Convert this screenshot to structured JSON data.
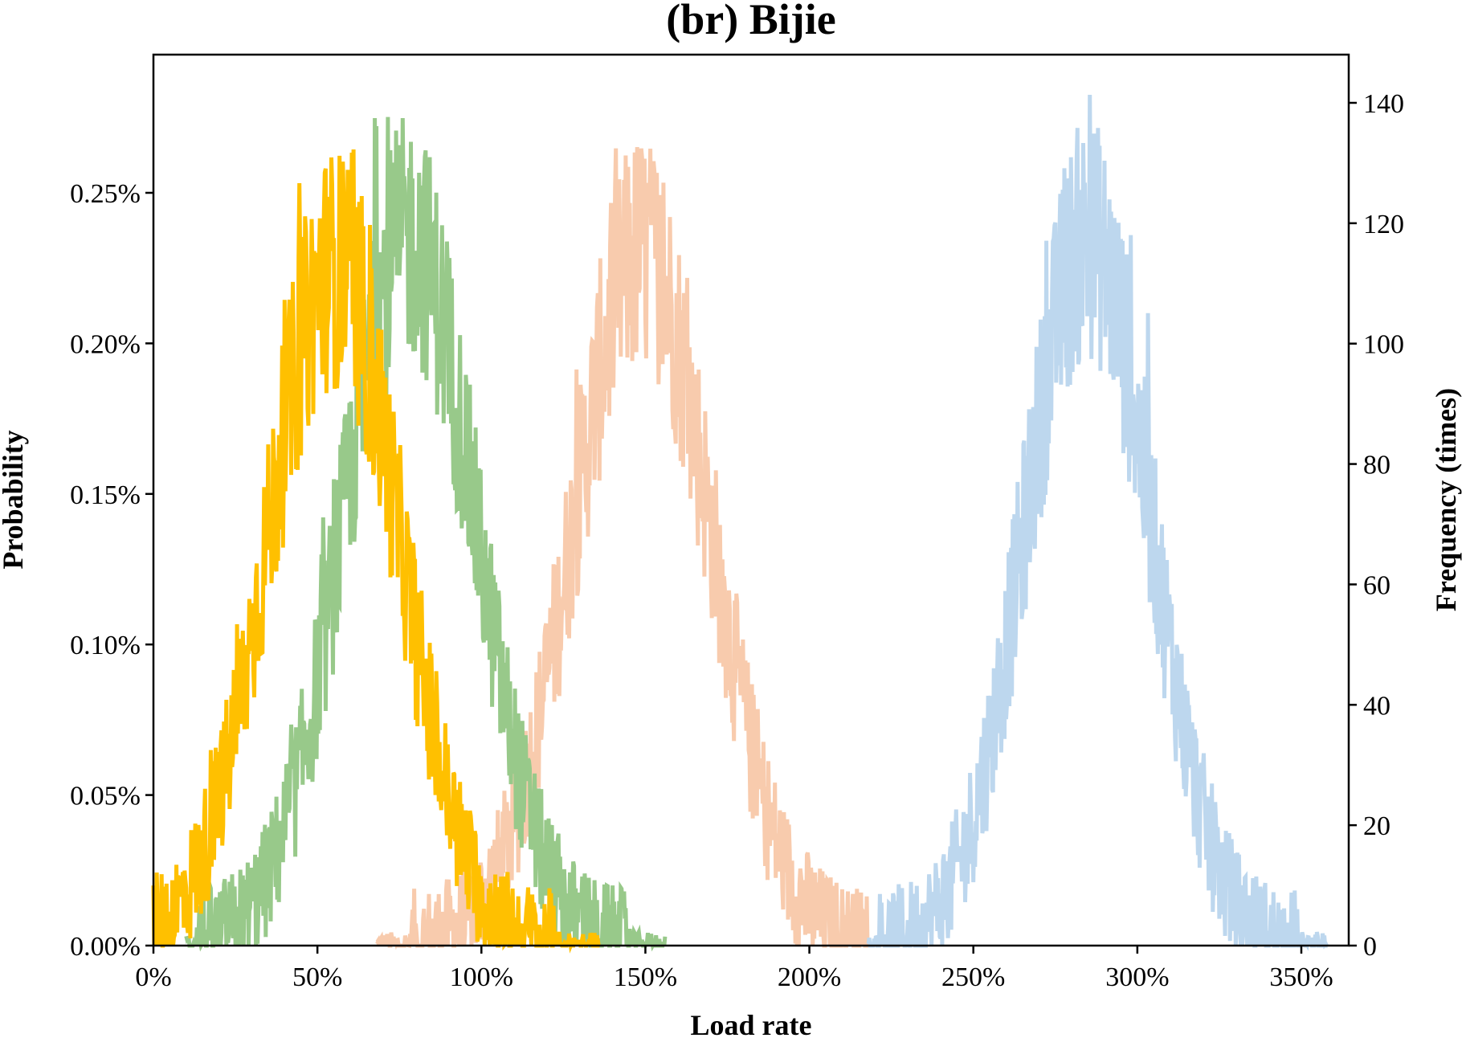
{
  "chart_data": {
    "type": "line",
    "title": "(br) Bijie",
    "xlabel": "Load rate",
    "ylabel": "Probability",
    "ylabel_right": "Frequency (times)",
    "xlim": [
      0,
      365
    ],
    "ylim": [
      0,
      0.296
    ],
    "ylim_right": [
      0,
      147
    ],
    "x_ticks": [
      0,
      50,
      100,
      150,
      200,
      250,
      300,
      350
    ],
    "x_tick_labels": [
      "0%",
      "50%",
      "100%",
      "150%",
      "200%",
      "250%",
      "300%",
      "350%"
    ],
    "y_ticks": [
      0,
      0.05,
      0.1,
      0.15,
      0.2,
      0.25
    ],
    "y_tick_labels": [
      "0.00%",
      "0.05%",
      "0.10%",
      "0.15%",
      "0.20%",
      "0.25%"
    ],
    "y_right_ticks": [
      0,
      20,
      40,
      60,
      80,
      100,
      120,
      140
    ],
    "y_right_tick_labels": [
      "0",
      "20",
      "40",
      "60",
      "80",
      "100",
      "120",
      "140"
    ],
    "grid": false,
    "legend": "none",
    "series": [
      {
        "color": "#ffc000",
        "x_range": [
          0,
          136
        ],
        "mean": 55,
        "std": 20,
        "peak": 0.225,
        "max": 0.27
      },
      {
        "color": "#98c98a",
        "x_range": [
          10,
          156
        ],
        "mean": 78,
        "std": 20,
        "peak": 0.235,
        "max": 0.279
      },
      {
        "color": "#f8cbad",
        "x_range": [
          68,
          218
        ],
        "mean": 149,
        "std": 21,
        "peak": 0.23,
        "max": 0.266
      },
      {
        "color": "#bdd7ee",
        "x_range": [
          218,
          358
        ],
        "mean": 285,
        "std": 19,
        "peak": 0.235,
        "max": 0.283
      }
    ]
  }
}
